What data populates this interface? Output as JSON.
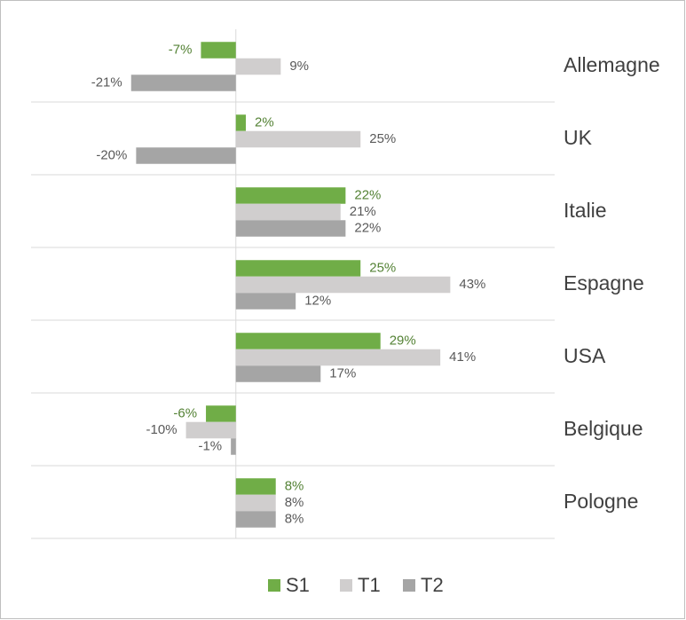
{
  "chart_data": {
    "type": "hbar",
    "categories": [
      "Allemagne",
      "UK",
      "Italie",
      "Espagne",
      "USA",
      "Belgique",
      "Pologne"
    ],
    "series": [
      {
        "name": "S1",
        "color": "#70ad47",
        "values": [
          -7,
          2,
          22,
          25,
          29,
          -6,
          8
        ],
        "value_labels": [
          "-7%",
          "2%",
          "22%",
          "25%",
          "29%",
          "-6%",
          "8%"
        ]
      },
      {
        "name": "T1",
        "color": "#d0cece",
        "values": [
          9,
          25,
          21,
          43,
          41,
          -10,
          8
        ],
        "value_labels": [
          "9%",
          "25%",
          "21%",
          "43%",
          "41%",
          "-10%",
          "8%"
        ]
      },
      {
        "name": "T2",
        "color": "#a5a5a5",
        "values": [
          -21,
          -20,
          22,
          12,
          17,
          -1,
          8
        ],
        "value_labels": [
          "-21%",
          "-20%",
          "22%",
          "12%",
          "17%",
          "-1%",
          "8%"
        ]
      }
    ],
    "xlim": [
      -40,
      65
    ]
  }
}
